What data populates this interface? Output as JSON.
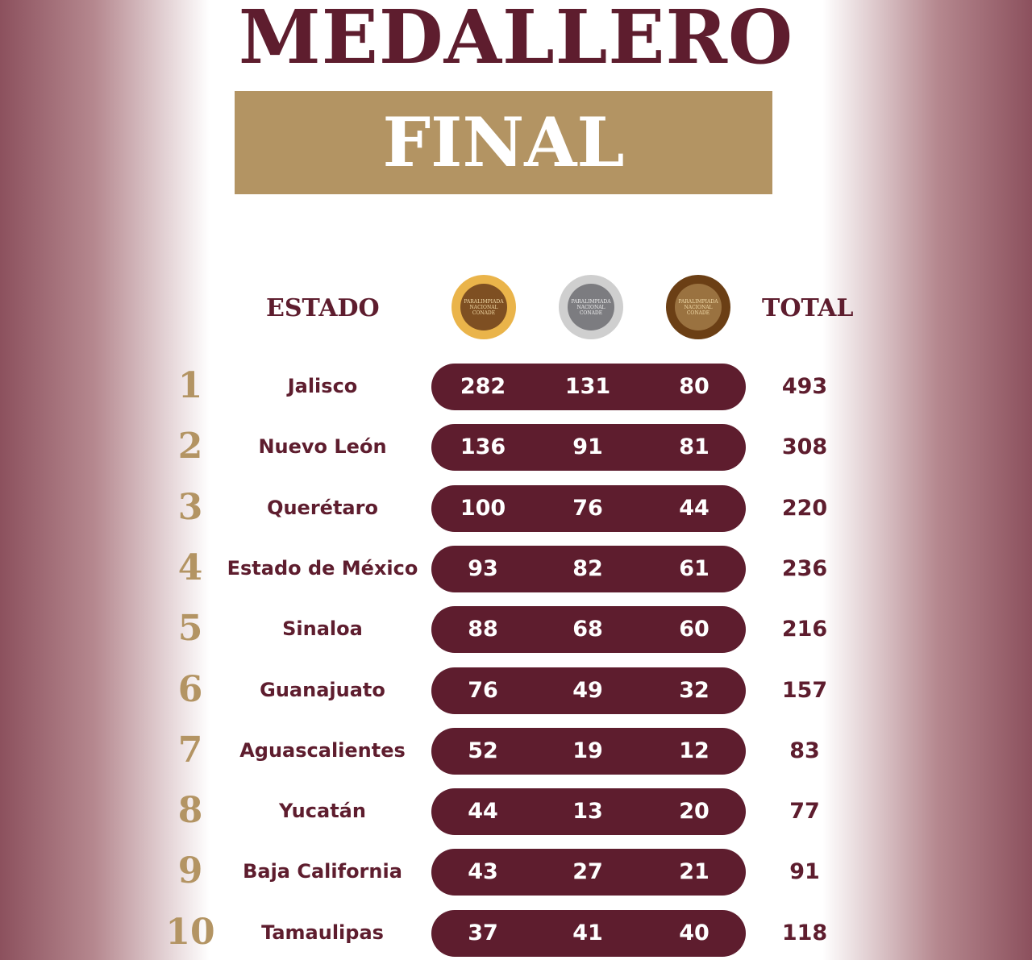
{
  "title": "MEDALLERO",
  "subtitle": "FINAL",
  "colors": {
    "maroon": "#5e1d2e",
    "gold_accent": "#b39463"
  },
  "headers": {
    "state": "ESTADO",
    "gold": "gold-medal-icon",
    "silver": "silver-medal-icon",
    "bronze": "bronze-medal-icon",
    "total": "TOTAL"
  },
  "medal_logo_text": "PARALIMPIADA NACIONAL CONADE",
  "rows": [
    {
      "rank": "1",
      "state": "Jalisco",
      "gold": "282",
      "silver": "131",
      "bronze": "80",
      "total": "493"
    },
    {
      "rank": "2",
      "state": "Nuevo León",
      "gold": "136",
      "silver": "91",
      "bronze": "81",
      "total": "308"
    },
    {
      "rank": "3",
      "state": "Querétaro",
      "gold": "100",
      "silver": "76",
      "bronze": "44",
      "total": "220"
    },
    {
      "rank": "4",
      "state": "Estado de México",
      "gold": "93",
      "silver": "82",
      "bronze": "61",
      "total": "236"
    },
    {
      "rank": "5",
      "state": "Sinaloa",
      "gold": "88",
      "silver": "68",
      "bronze": "60",
      "total": "216"
    },
    {
      "rank": "6",
      "state": "Guanajuato",
      "gold": "76",
      "silver": "49",
      "bronze": "32",
      "total": "157"
    },
    {
      "rank": "7",
      "state": "Aguascalientes",
      "gold": "52",
      "silver": "19",
      "bronze": "12",
      "total": "83"
    },
    {
      "rank": "8",
      "state": "Yucatán",
      "gold": "44",
      "silver": "13",
      "bronze": "20",
      "total": "77"
    },
    {
      "rank": "9",
      "state": "Baja California",
      "gold": "43",
      "silver": "27",
      "bronze": "21",
      "total": "91"
    },
    {
      "rank": "10",
      "state": "Tamaulipas",
      "gold": "37",
      "silver": "41",
      "bronze": "40",
      "total": "118"
    }
  ]
}
